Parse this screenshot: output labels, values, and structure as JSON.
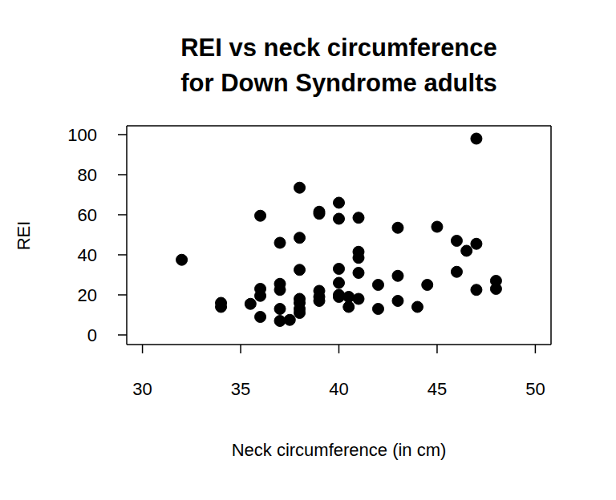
{
  "chart_data": {
    "type": "scatter",
    "title": [
      "REI vs neck circumference",
      "for Down Syndrome adults"
    ],
    "x_label": "Neck circumference (in cm)",
    "y_label": "REI",
    "color": "#000000",
    "marker": "circle",
    "xlim": [
      29.2,
      50.8
    ],
    "ylim": [
      -4.8,
      104.4
    ],
    "xticks": [
      30,
      35,
      40,
      45,
      50
    ],
    "yticks": [
      0,
      20,
      40,
      60,
      80,
      100
    ],
    "grid": false,
    "x": [
      32,
      34,
      34,
      35.5,
      36,
      36,
      36,
      36,
      37,
      37,
      37,
      37,
      37,
      37.5,
      38,
      38,
      38,
      38,
      38,
      38,
      38,
      39,
      39,
      39,
      39,
      39,
      40,
      40,
      40,
      40,
      40,
      40,
      40.5,
      40.5,
      41,
      41,
      41,
      41,
      41,
      42,
      42,
      43,
      43,
      43,
      44,
      44.5,
      45,
      46,
      46,
      46.5,
      47,
      47,
      47,
      48,
      48
    ],
    "values": [
      37.5,
      16,
      14,
      15.5,
      59.5,
      23,
      19.5,
      9,
      46,
      25.5,
      22.5,
      13,
      7,
      7.5,
      73.5,
      48.5,
      32.5,
      18,
      16,
      13,
      11,
      61.5,
      60.5,
      22,
      19,
      17,
      66,
      58,
      33,
      26,
      20,
      19,
      19,
      14,
      58.5,
      41.5,
      38.5,
      31,
      18,
      25,
      13,
      53.5,
      29.5,
      17,
      14,
      25,
      54,
      47,
      31.5,
      42,
      98,
      45.5,
      22.5,
      27,
      23
    ]
  }
}
